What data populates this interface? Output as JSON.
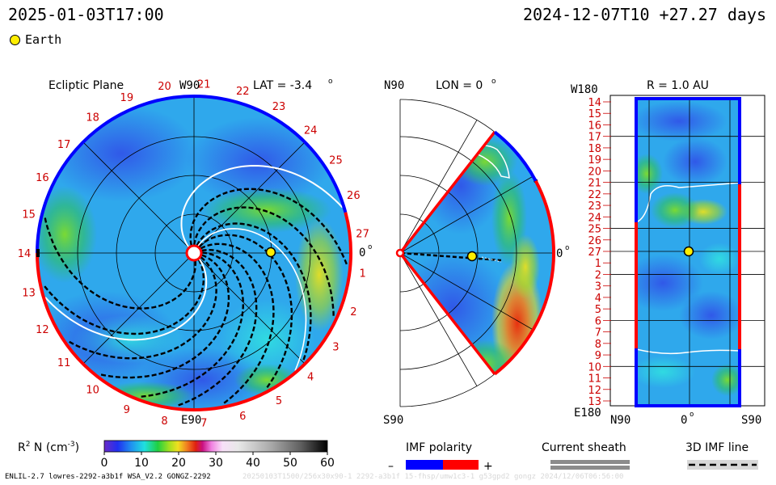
{
  "header": {
    "left_time": "2025-01-03T17:00",
    "right_time": "2024-12-07T10 +27.27 days"
  },
  "legend_earth": {
    "label": "Earth",
    "color": "#ffee00"
  },
  "panels": {
    "ecliptic": {
      "title": "Ecliptic Plane",
      "top_label": "W90",
      "bottom_label": "E90",
      "right_label": "0",
      "lat_label": "LAT = -3.4",
      "lat_unit": "o",
      "rotation_labels": [
        "1",
        "2",
        "3",
        "4",
        "5",
        "6",
        "7",
        "8",
        "9",
        "10",
        "11",
        "12",
        "13",
        "14",
        "15",
        "16",
        "17",
        "18",
        "19",
        "20",
        "21",
        "22",
        "23",
        "24",
        "25",
        "26",
        "27"
      ]
    },
    "meridional": {
      "top_label": "N90",
      "bottom_label": "S90",
      "lon_label": "LON = 0",
      "lon_unit": "o",
      "right_label": "0"
    },
    "radial": {
      "r_label": "R = 1.0 AU",
      "top_left_label": "W180",
      "bottom_left_label": "E180",
      "bottom_labels": [
        "N90",
        "0",
        "S90"
      ],
      "y_labels": [
        "14",
        "15",
        "16",
        "17",
        "18",
        "19",
        "20",
        "21",
        "22",
        "23",
        "24",
        "25",
        "26",
        "27",
        "1",
        "2",
        "3",
        "4",
        "5",
        "6",
        "7",
        "8",
        "9",
        "10",
        "11",
        "12",
        "13"
      ]
    }
  },
  "colorbar": {
    "label_prefix": "R",
    "label_sup": "2",
    "label_rest": " N (cm",
    "label_exp": "-3",
    "label_close": ")",
    "ticks": [
      "0",
      "10",
      "20",
      "30",
      "40",
      "50",
      "60"
    ],
    "min": 0,
    "max": 60
  },
  "imf_legend": {
    "title": "IMF polarity",
    "minus": "–",
    "plus": "+",
    "neg_color": "#0000ff",
    "pos_color": "#ff0000"
  },
  "sheath_legend": {
    "title": "Current sheath"
  },
  "field_line_legend": {
    "title": "3D IMF line"
  },
  "footer": {
    "text": "ENLIL-2.7 lowres-2292-a3b1f WSA_V2.2 GONGZ-2292",
    "faint": "20250103T1500/256x30x90-1 2292-a3b1f 15-fhsp/umw1c3-1 g53gpd2 gongz 2024/12/06T06:56:00"
  },
  "chart_data": [
    {
      "type": "heatmap",
      "title": "Ecliptic Plane",
      "quantity": "R^2 N (cm^-3)",
      "lat_deg": -3.4,
      "range": [
        0,
        60
      ],
      "earth_marker": {
        "radius_au": 1.0,
        "angle_deg": 0
      }
    },
    {
      "type": "heatmap",
      "title": "LON = 0",
      "quantity": "R^2 N (cm^-3)",
      "range": [
        0,
        60
      ],
      "earth_marker": {
        "radius_au": 1.0,
        "lat_deg": 0
      }
    },
    {
      "type": "heatmap",
      "title": "R = 1.0 AU",
      "quantity": "R^2 N (cm^-3)",
      "x_ticks": [
        "N90",
        "0",
        "S90"
      ],
      "y_ticks": [
        "14",
        "15",
        "16",
        "17",
        "18",
        "19",
        "20",
        "21",
        "22",
        "23",
        "24",
        "25",
        "26",
        "27",
        "1",
        "2",
        "3",
        "4",
        "5",
        "6",
        "7",
        "8",
        "9",
        "10",
        "11",
        "12",
        "13"
      ],
      "range": [
        0,
        60
      ]
    }
  ]
}
